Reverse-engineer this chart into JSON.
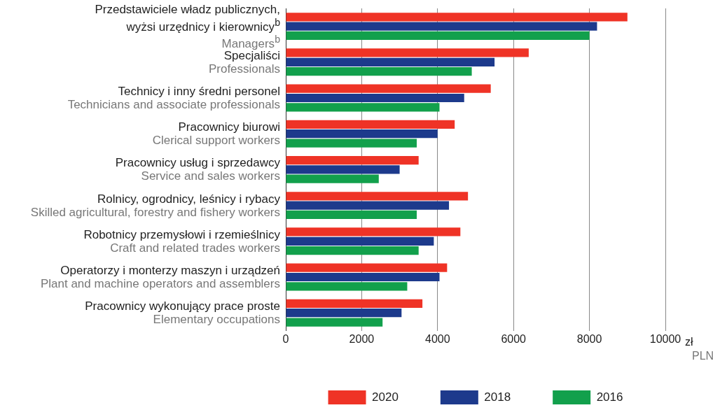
{
  "chart_data": {
    "type": "bar",
    "orientation": "horizontal",
    "categories": [
      "Przedstawiciele władz publicznych,\nwyżsi urzędnicy i kierownicy$^{b}$\nManagers$^{b}$",
      "Specjaliści\nProfessionals",
      "Technicy i inny średni personel\nTechnicians and associate professionals",
      "Pracownicy biurowi\nClerical support workers",
      "Pracownicy usług i sprzedawcy\nService and sales workers",
      "Rolnicy, ogrodnicy, leśnicy i rybacy\nSkilled agricultural, forestry and fishery workers",
      "Robotnicy przemysłowi i rzemieślnicy\nCraft and related trades workers",
      "Operatorzy i monterzy maszyn i urządzeń\nPlant and machine operators and assemblers",
      "Pracownicy wykonujący prace proste\nElementary occupations"
    ],
    "series": [
      {
        "name": "2020",
        "color": "#ef3326",
        "values": [
          9000,
          6400,
          5400,
          4450,
          3500,
          4800,
          4600,
          4250,
          3600
        ]
      },
      {
        "name": "2018",
        "color": "#1d3a8c",
        "values": [
          8200,
          5500,
          4700,
          4000,
          3000,
          4300,
          3900,
          4050,
          3050
        ]
      },
      {
        "name": "2016",
        "color": "#12a04c",
        "values": [
          8000,
          4900,
          4050,
          3450,
          2450,
          3450,
          3500,
          3200,
          2550
        ]
      }
    ],
    "xlabel": "zł\nPLN",
    "xlim": [
      0,
      10000
    ],
    "xticks": [
      0,
      2000,
      4000,
      6000,
      8000,
      10000
    ],
    "grid": "x",
    "legend": "bottom"
  }
}
